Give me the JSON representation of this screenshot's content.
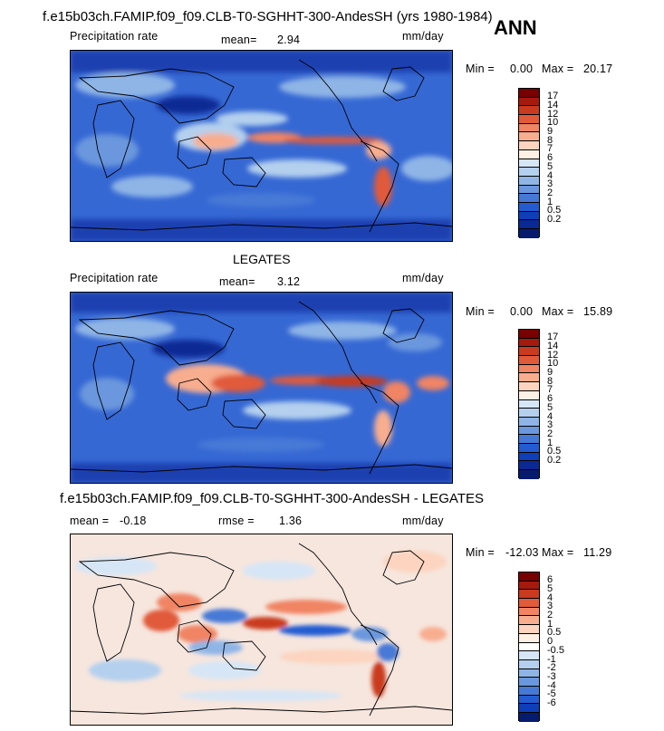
{
  "annual_tag": "ANN",
  "panels": [
    {
      "title": "f.e15b03ch.FAMIP.f09_f09.CLB-T0-SGHHT-300-AndesSH (yrs 1980-1984)",
      "field_label": "Precipitation rate",
      "stat1_label": "mean=",
      "stat1_value": "2.94",
      "units": "mm/day",
      "min_label": "Min =",
      "min_value": "0.00",
      "max_label": "Max =",
      "max_value": "20.17",
      "colorbar": {
        "colors": [
          "#780000",
          "#a51a0d",
          "#c93a1f",
          "#e15a3a",
          "#f08463",
          "#f8ad8f",
          "#fcd4bf",
          "#fdf0e4",
          "#d6e6f6",
          "#b4d0ee",
          "#8fb5e6",
          "#6a97dd",
          "#4679d6",
          "#245bd1",
          "#0f3fb8",
          "#0a2994",
          "#071b6e"
        ],
        "labels": [
          "17",
          "14",
          "12",
          "10",
          "9",
          "8",
          "7",
          "6",
          "5",
          "4",
          "3",
          "2",
          "1",
          "0.5",
          "0.2"
        ]
      }
    },
    {
      "title": "LEGATES",
      "field_label": "Precipitation rate",
      "stat1_label": "mean=",
      "stat1_value": "3.12",
      "units": "mm/day",
      "min_label": "Min =",
      "min_value": "0.00",
      "max_label": "Max =",
      "max_value": "15.89",
      "colorbar": {
        "colors": [
          "#780000",
          "#a51a0d",
          "#c93a1f",
          "#e15a3a",
          "#f08463",
          "#f8ad8f",
          "#fcd4bf",
          "#fdf0e4",
          "#d6e6f6",
          "#b4d0ee",
          "#8fb5e6",
          "#6a97dd",
          "#4679d6",
          "#245bd1",
          "#0f3fb8",
          "#0a2994",
          "#071b6e"
        ],
        "labels": [
          "17",
          "14",
          "12",
          "10",
          "9",
          "8",
          "7",
          "6",
          "5",
          "4",
          "3",
          "2",
          "1",
          "0.5",
          "0.2"
        ]
      }
    },
    {
      "title": "f.e15b03ch.FAMIP.f09_f09.CLB-T0-SGHHT-300-AndesSH - LEGATES",
      "stat1_label": "mean =",
      "stat1_value": "-0.18",
      "stat2_label": "rmse =",
      "stat2_value": "1.36",
      "units": "mm/day",
      "min_label": "Min =",
      "min_value": "-12.03",
      "max_label": "Max =",
      "max_value": "11.29",
      "colorbar": {
        "colors": [
          "#780000",
          "#a51a0d",
          "#c93a1f",
          "#e15a3a",
          "#f08463",
          "#f8ad8f",
          "#fcd4bf",
          "#fdf0e4",
          "#ffffff",
          "#d6e6f6",
          "#b4d0ee",
          "#8fb5e6",
          "#6a97dd",
          "#4679d6",
          "#245bd1",
          "#0f3fb8",
          "#071b6e"
        ],
        "labels": [
          "6",
          "5",
          "4",
          "3",
          "2",
          "1",
          "0.5",
          "0",
          "-0.5",
          "-1",
          "-2",
          "-3",
          "-4",
          "-5",
          "-6"
        ]
      }
    }
  ]
}
